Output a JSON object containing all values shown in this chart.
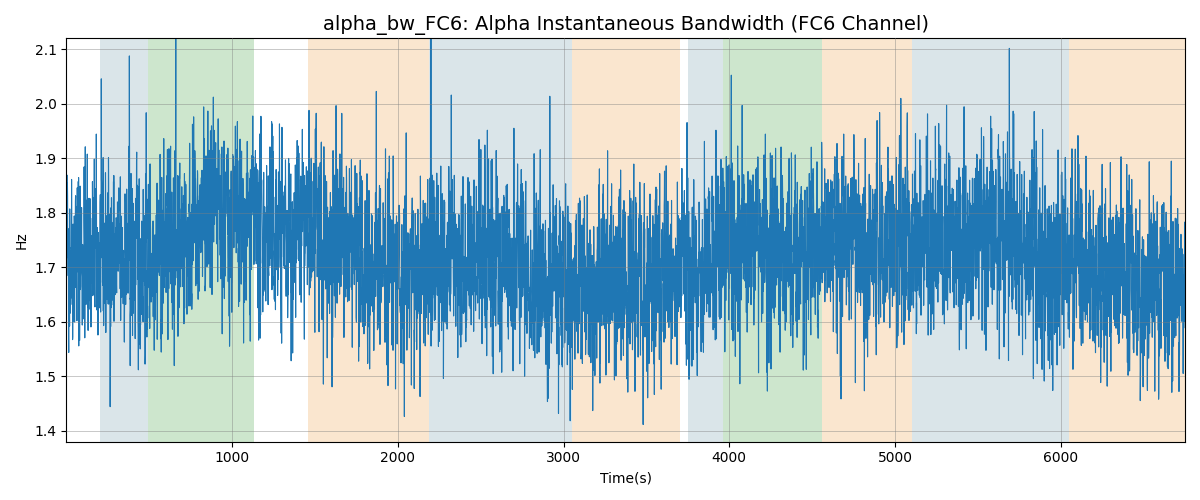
{
  "title": "alpha_bw_FC6: Alpha Instantaneous Bandwidth (FC6 Channel)",
  "xlabel": "Time(s)",
  "ylabel": "Hz",
  "ylim": [
    1.38,
    2.12
  ],
  "xlim": [
    0,
    6750
  ],
  "figsize": [
    12.0,
    5.0
  ],
  "dpi": 100,
  "line_color": "#1f77b4",
  "line_width": 0.8,
  "title_fontsize": 14,
  "bands": [
    {
      "xmin": 200,
      "xmax": 490,
      "color": "#aec6cf",
      "alpha": 0.45
    },
    {
      "xmin": 490,
      "xmax": 1130,
      "color": "#90c890",
      "alpha": 0.45
    },
    {
      "xmin": 1460,
      "xmax": 2190,
      "color": "#f5c895",
      "alpha": 0.45
    },
    {
      "xmin": 2190,
      "xmax": 3050,
      "color": "#aec6cf",
      "alpha": 0.45
    },
    {
      "xmin": 3050,
      "xmax": 3700,
      "color": "#f5c895",
      "alpha": 0.45
    },
    {
      "xmin": 3750,
      "xmax": 3960,
      "color": "#aec6cf",
      "alpha": 0.45
    },
    {
      "xmin": 3960,
      "xmax": 4560,
      "color": "#90c890",
      "alpha": 0.45
    },
    {
      "xmin": 4560,
      "xmax": 5100,
      "color": "#f5c895",
      "alpha": 0.45
    },
    {
      "xmin": 5100,
      "xmax": 6050,
      "color": "#aec6cf",
      "alpha": 0.45
    },
    {
      "xmin": 6050,
      "xmax": 6750,
      "color": "#f5c895",
      "alpha": 0.45
    }
  ],
  "seed": 42,
  "n_points": 6700,
  "signal_mean": 1.72,
  "signal_std": 0.085,
  "xticks": [
    1000,
    2000,
    3000,
    4000,
    5000,
    6000
  ],
  "yticks": [
    1.4,
    1.5,
    1.6,
    1.7,
    1.8,
    1.9,
    2.0,
    2.1
  ]
}
